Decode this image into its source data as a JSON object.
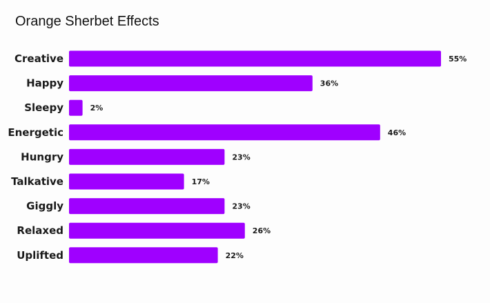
{
  "chart_data": {
    "type": "bar",
    "orientation": "horizontal",
    "title": "Orange Sherbet Effects",
    "categories": [
      "Creative",
      "Happy",
      "Sleepy",
      "Energetic",
      "Hungry",
      "Talkative",
      "Giggly",
      "Relaxed",
      "Uplifted"
    ],
    "values": [
      55,
      36,
      2,
      46,
      23,
      17,
      23,
      26,
      22
    ],
    "value_labels": [
      "55%",
      "36%",
      "2%",
      "46%",
      "23%",
      "17%",
      "23%",
      "26%",
      "22%"
    ],
    "xlim": [
      0,
      55
    ],
    "grid": false,
    "legend": "none",
    "bar_color": "#9f00ff"
  }
}
